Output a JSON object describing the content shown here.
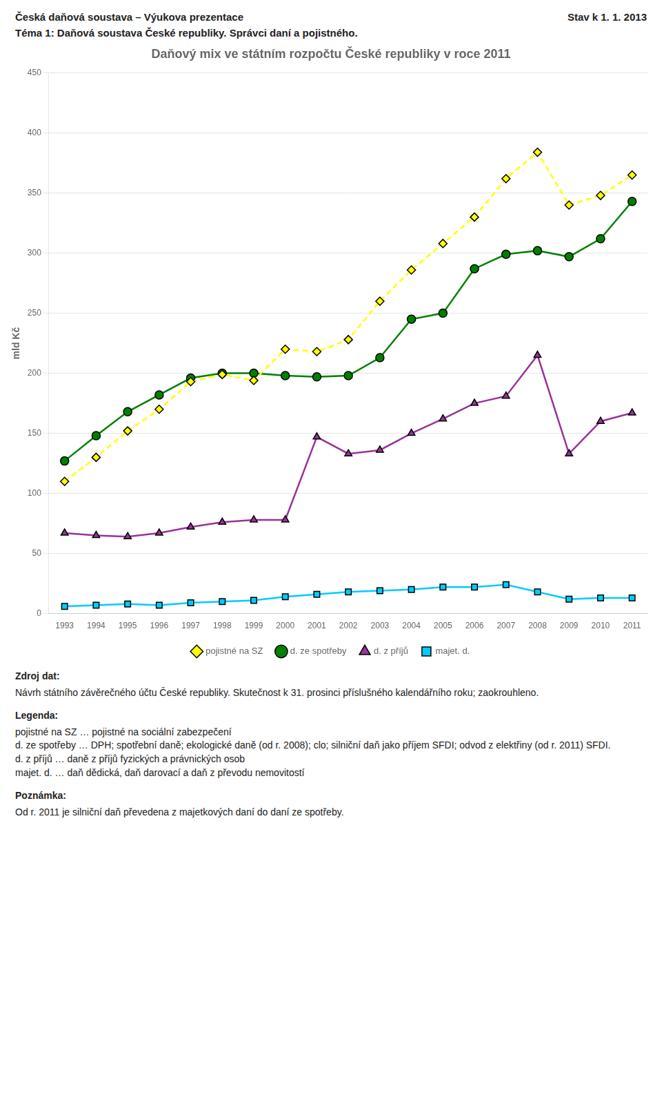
{
  "chart_data": {
    "type": "line",
    "header": [
      "Česká daňová soustava – Výukova prezentace",
      "Stav k 1. 1. 2013",
      "Téma 1: Daňová soustava České republiky. Správci daní a pojistného."
    ],
    "title": "Daňový mix ve státním rozpočtu České republiky v roce 2011",
    "ylabel": "mld Kč",
    "x": [
      1993,
      1994,
      1995,
      1996,
      1997,
      1998,
      1999,
      2000,
      2001,
      2002,
      2003,
      2004,
      2005,
      2006,
      2007,
      2008,
      2009,
      2010,
      2011
    ],
    "xlim": [
      1992.5,
      2011.5
    ],
    "xticks": [
      1993,
      1994,
      1995,
      1996,
      1997,
      1998,
      1999,
      2000,
      2001,
      2002,
      2003,
      2004,
      2005,
      2006,
      2007,
      2008,
      2009,
      2010,
      2011
    ],
    "ylim": [
      0,
      450
    ],
    "yticks": [
      0,
      50,
      100,
      150,
      200,
      250,
      300,
      350,
      400,
      450
    ],
    "grid": "y",
    "legend": "bottom",
    "series": [
      {
        "name": "pojistné na SZ",
        "color": "#FFFF00",
        "marker": "diamond",
        "line_style": "dashed",
        "values": [
          110,
          130,
          152,
          170,
          193,
          199,
          194,
          220,
          218,
          228,
          260,
          286,
          308,
          330,
          362,
          384,
          340,
          348,
          365
        ]
      },
      {
        "name": "d. ze spotřeby",
        "color": "#008000",
        "marker": "circle",
        "line_style": "solid",
        "values": [
          127,
          148,
          168,
          182,
          196,
          200,
          200,
          198,
          197,
          198,
          213,
          245,
          250,
          287,
          299,
          302,
          297,
          312,
          343
        ]
      },
      {
        "name": "d. z příjů",
        "color": "#993399",
        "marker": "triangle",
        "line_style": "solid",
        "values": [
          67,
          65,
          64,
          67,
          72,
          76,
          78,
          78,
          147,
          133,
          136,
          150,
          162,
          175,
          181,
          215,
          133,
          160,
          167
        ]
      },
      {
        "name": "majet. d.",
        "color": "#00CCFF",
        "marker": "square",
        "line_style": "solid",
        "values": [
          6,
          7,
          8,
          7,
          9,
          10,
          11,
          14,
          16,
          18,
          19,
          20,
          22,
          22,
          24,
          18,
          12,
          13,
          13
        ]
      }
    ],
    "annotations": [
      {
        "title": "Zdroj dat:",
        "lines": [
          "Návrh státního závěrečného účtu České republiky. Skutečnost k 31. prosinci příslušného kalendářního roku; zaokrouhleno."
        ]
      },
      {
        "title": "Legenda:",
        "lines": [
          "pojistné na SZ … pojistné na sociální zabezpečení",
          "d. ze spotřeby … DPH; spotřební daně; ekologické daně (od r. 2008); clo; silniční daň jako příjem SFDI; odvod z elektřiny (od r. 2011) SFDI.",
          "d. z příjů … daně z příjů fyzických a právnických osob",
          "majet. d. … daň dědická, daň darovací a daň z převodu nemovitostí"
        ]
      },
      {
        "title": "Poznámka:",
        "lines": [
          "Od r. 2011 je silniční daň převedena z majetkových daní do daní ze spotřeby."
        ]
      }
    ]
  }
}
